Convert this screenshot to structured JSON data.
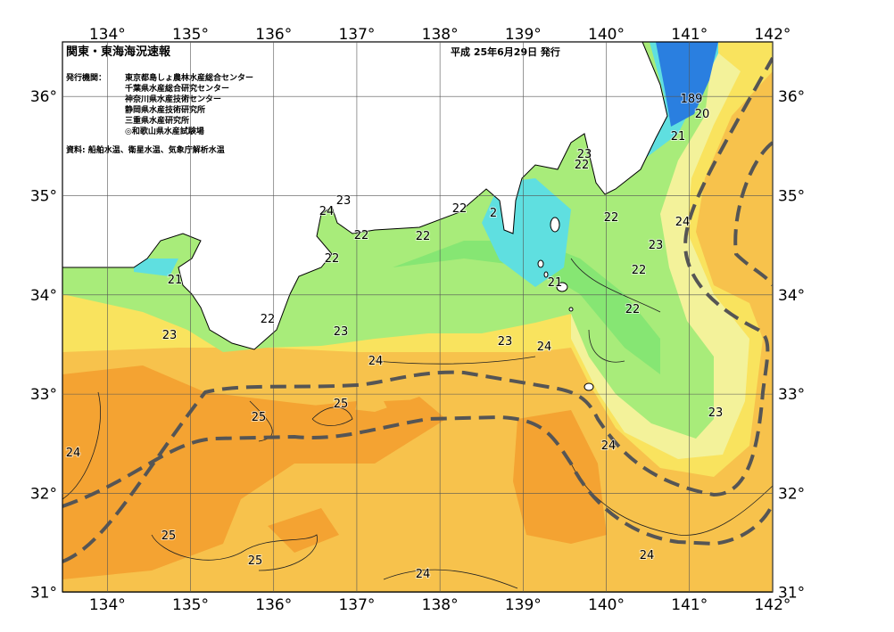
{
  "header": {
    "title": "関東・東海海況速報",
    "date": "平成 25年6月29日 発行",
    "issuer_label": "発行機関：",
    "issuers": [
      "東京都島しょ農林水産総合センター",
      "千葉県水産総合研究センター",
      "神奈川県水産技術センター",
      "静岡県水産技術研究所",
      "三重県水産研究所",
      "◎和歌山県水産試験場"
    ],
    "source": "資料: 船舶水温、衛星水温、気象庁解析水温"
  },
  "map": {
    "lon_ticks": [
      {
        "value": 134,
        "label": "134°"
      },
      {
        "value": 135,
        "label": "135°"
      },
      {
        "value": 136,
        "label": "136°"
      },
      {
        "value": 137,
        "label": "137°"
      },
      {
        "value": 138,
        "label": "138°"
      },
      {
        "value": 139,
        "label": "139°"
      },
      {
        "value": 140,
        "label": "140°"
      },
      {
        "value": 141,
        "label": "141°"
      },
      {
        "value": 142,
        "label": "142°"
      }
    ],
    "lat_ticks": [
      {
        "value": 31,
        "label": "31°"
      },
      {
        "value": 32,
        "label": "32°"
      },
      {
        "value": 33,
        "label": "33°"
      },
      {
        "value": 34,
        "label": "34°"
      },
      {
        "value": 35,
        "label": "35°"
      },
      {
        "value": 36,
        "label": "36°"
      }
    ],
    "contour_labels": [
      189,
      20,
      21,
      23,
      22,
      23,
      24,
      22,
      2,
      22,
      24,
      22,
      22,
      23,
      22,
      22,
      21,
      21,
      22,
      22,
      23,
      23,
      23,
      24,
      24,
      25,
      23,
      25,
      24,
      24,
      25,
      25,
      24,
      24
    ]
  }
}
